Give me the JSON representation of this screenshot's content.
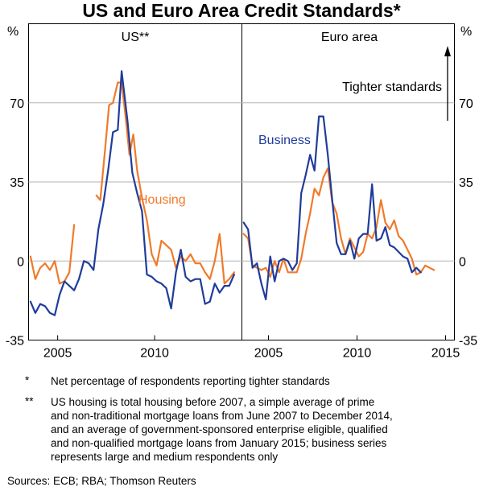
{
  "chart_data": {
    "type": "line",
    "title": "US and Euro Area Credit Standards*",
    "y_unit_label": "%",
    "ylim": [
      -35,
      105
    ],
    "yticks": [
      -35,
      0,
      35,
      70
    ],
    "yticks_labels": [
      "-35",
      "0",
      "35",
      "70"
    ],
    "panels": [
      {
        "name": "US**",
        "xlim": [
          2003.5,
          2014.5
        ],
        "xticks": [
          2005,
          2010
        ],
        "xtick_labels": [
          "2005",
          "2010"
        ],
        "series": [
          {
            "name": "Housing",
            "color": "#f07a2a",
            "segments": [
              [
                [
                  2003.6,
                  2
                ],
                [
                  2003.85,
                  -8
                ],
                [
                  2004.1,
                  -3
                ],
                [
                  2004.35,
                  -1
                ],
                [
                  2004.6,
                  -4
                ],
                [
                  2004.85,
                  0
                ],
                [
                  2005.1,
                  -10
                ],
                [
                  2005.35,
                  -9
                ],
                [
                  2005.6,
                  -5
                ],
                [
                  2005.85,
                  16
                ]
              ],
              [
                [
                  2007.0,
                  29
                ],
                [
                  2007.2,
                  27
                ],
                [
                  2007.45,
                  50
                ],
                [
                  2007.65,
                  69
                ],
                [
                  2007.85,
                  70
                ],
                [
                  2008.1,
                  79
                ],
                [
                  2008.3,
                  79
                ],
                [
                  2008.5,
                  64
                ],
                [
                  2008.7,
                  47
                ],
                [
                  2008.9,
                  56
                ],
                [
                  2009.1,
                  40
                ],
                [
                  2009.35,
                  28
                ],
                [
                  2009.6,
                  18
                ],
                [
                  2009.85,
                  3
                ],
                [
                  2010.1,
                  -2
                ],
                [
                  2010.35,
                  9
                ],
                [
                  2010.6,
                  7
                ],
                [
                  2010.85,
                  5
                ],
                [
                  2011.1,
                  -3
                ],
                [
                  2011.35,
                  2
                ],
                [
                  2011.6,
                  0
                ],
                [
                  2011.85,
                  3
                ],
                [
                  2012.1,
                  -1
                ],
                [
                  2012.35,
                  -1
                ],
                [
                  2012.6,
                  -5
                ],
                [
                  2012.85,
                  -8
                ],
                [
                  2013.1,
                  0
                ],
                [
                  2013.35,
                  12
                ],
                [
                  2013.6,
                  -10
                ],
                [
                  2013.85,
                  -8
                ],
                [
                  2014.1,
                  -5
                ]
              ]
            ]
          },
          {
            "name": "Business",
            "color": "#1f3c9c",
            "segments": [
              [
                [
                  2003.6,
                  -18
                ],
                [
                  2003.85,
                  -23
                ],
                [
                  2004.1,
                  -19
                ],
                [
                  2004.35,
                  -20
                ],
                [
                  2004.6,
                  -23
                ],
                [
                  2004.85,
                  -24
                ],
                [
                  2005.1,
                  -15
                ],
                [
                  2005.35,
                  -9
                ],
                [
                  2005.6,
                  -11
                ],
                [
                  2005.85,
                  -13
                ],
                [
                  2006.1,
                  -8
                ],
                [
                  2006.35,
                  0
                ],
                [
                  2006.6,
                  -1
                ],
                [
                  2006.85,
                  -4
                ],
                [
                  2007.1,
                  14
                ],
                [
                  2007.35,
                  25
                ],
                [
                  2007.6,
                  40
                ],
                [
                  2007.85,
                  57
                ],
                [
                  2008.1,
                  58
                ],
                [
                  2008.3,
                  84
                ],
                [
                  2008.6,
                  62
                ],
                [
                  2008.85,
                  39
                ],
                [
                  2009.1,
                  30
                ],
                [
                  2009.35,
                  22
                ],
                [
                  2009.6,
                  -6
                ],
                [
                  2009.85,
                  -7
                ],
                [
                  2010.1,
                  -9
                ],
                [
                  2010.35,
                  -10
                ],
                [
                  2010.6,
                  -12
                ],
                [
                  2010.85,
                  -21
                ],
                [
                  2011.1,
                  -5
                ],
                [
                  2011.35,
                  5
                ],
                [
                  2011.6,
                  -7
                ],
                [
                  2011.85,
                  -9
                ],
                [
                  2012.1,
                  -8
                ],
                [
                  2012.35,
                  -8
                ],
                [
                  2012.6,
                  -19
                ],
                [
                  2012.85,
                  -18
                ],
                [
                  2013.1,
                  -10
                ],
                [
                  2013.35,
                  -14
                ],
                [
                  2013.6,
                  -11
                ],
                [
                  2013.85,
                  -11
                ],
                [
                  2014.1,
                  -6
                ]
              ]
            ]
          }
        ],
        "annotations": [
          {
            "text": "Housing",
            "color": "#f07a2a"
          }
        ]
      },
      {
        "name": "Euro area",
        "xlim": [
          2003.5,
          2015.5
        ],
        "xticks": [
          2005,
          2010,
          2015
        ],
        "xtick_labels": [
          "2005",
          "2010",
          "2015"
        ],
        "series": [
          {
            "name": "Housing",
            "color": "#f07a2a",
            "segments": [
              [
                [
                  2003.6,
                  12
                ],
                [
                  2003.85,
                  10
                ],
                [
                  2004.1,
                  -2
                ],
                [
                  2004.35,
                  -3
                ],
                [
                  2004.6,
                  -4
                ],
                [
                  2004.85,
                  -3
                ],
                [
                  2005.1,
                  -7
                ],
                [
                  2005.35,
                  0
                ],
                [
                  2005.6,
                  -5
                ],
                [
                  2005.85,
                  1
                ],
                [
                  2006.1,
                  -5
                ],
                [
                  2006.35,
                  -5
                ],
                [
                  2006.6,
                  -5
                ],
                [
                  2006.85,
                  1
                ],
                [
                  2007.1,
                  12
                ],
                [
                  2007.35,
                  21
                ],
                [
                  2007.6,
                  32
                ],
                [
                  2007.85,
                  29
                ],
                [
                  2008.1,
                  37
                ],
                [
                  2008.35,
                  41
                ],
                [
                  2008.6,
                  26
                ],
                [
                  2008.85,
                  21
                ],
                [
                  2009.1,
                  10
                ],
                [
                  2009.35,
                  3
                ],
                [
                  2009.6,
                  10
                ],
                [
                  2009.85,
                  6
                ],
                [
                  2010.1,
                  2
                ],
                [
                  2010.35,
                  4
                ],
                [
                  2010.6,
                  12
                ],
                [
                  2010.85,
                  10
                ],
                [
                  2011.1,
                  15
                ],
                [
                  2011.35,
                  27
                ],
                [
                  2011.6,
                  17
                ],
                [
                  2011.85,
                  14
                ],
                [
                  2012.1,
                  18
                ],
                [
                  2012.35,
                  11
                ],
                [
                  2012.6,
                  9
                ],
                [
                  2012.85,
                  5
                ],
                [
                  2013.1,
                  1
                ],
                [
                  2013.35,
                  -6
                ],
                [
                  2013.6,
                  -5
                ],
                [
                  2013.85,
                  -2
                ],
                [
                  2014.1,
                  -3
                ],
                [
                  2014.35,
                  -4
                ]
              ]
            ]
          },
          {
            "name": "Business",
            "color": "#1f3c9c",
            "segments": [
              [
                [
                  2003.6,
                  17
                ],
                [
                  2003.85,
                  14
                ],
                [
                  2004.1,
                  -3
                ],
                [
                  2004.35,
                  -1
                ],
                [
                  2004.6,
                  -10
                ],
                [
                  2004.85,
                  -17
                ],
                [
                  2005.1,
                  2
                ],
                [
                  2005.35,
                  -9
                ],
                [
                  2005.6,
                  0
                ],
                [
                  2005.85,
                  1
                ],
                [
                  2006.1,
                  0
                ],
                [
                  2006.35,
                  -4
                ],
                [
                  2006.6,
                  -1
                ],
                [
                  2006.85,
                  30
                ],
                [
                  2007.1,
                  38
                ],
                [
                  2007.35,
                  47
                ],
                [
                  2007.6,
                  40
                ],
                [
                  2007.85,
                  64
                ],
                [
                  2008.1,
                  64
                ],
                [
                  2008.35,
                  47
                ],
                [
                  2008.6,
                  27
                ],
                [
                  2008.85,
                  8
                ],
                [
                  2009.1,
                  3
                ],
                [
                  2009.35,
                  3
                ],
                [
                  2009.6,
                  9
                ],
                [
                  2009.85,
                  1
                ],
                [
                  2010.1,
                  10
                ],
                [
                  2010.35,
                  12
                ],
                [
                  2010.6,
                  12
                ],
                [
                  2010.85,
                  34
                ],
                [
                  2011.1,
                  9
                ],
                [
                  2011.35,
                  10
                ],
                [
                  2011.6,
                  15
                ],
                [
                  2011.85,
                  7
                ],
                [
                  2012.1,
                  6
                ],
                [
                  2012.35,
                  4
                ],
                [
                  2012.6,
                  2
                ],
                [
                  2012.85,
                  1
                ],
                [
                  2013.1,
                  -5
                ],
                [
                  2013.35,
                  -3
                ],
                [
                  2013.6,
                  -5
                ]
              ]
            ]
          }
        ],
        "annotations": [
          {
            "text": "Business",
            "color": "#1f3c9c"
          },
          {
            "text": "Tighter standards",
            "color": "#000000"
          }
        ]
      }
    ]
  },
  "notes": [
    {
      "mark": "*",
      "lines": [
        "Net percentage of respondents reporting tighter standards"
      ]
    },
    {
      "mark": "**",
      "lines": [
        "US housing is total housing before 2007, a simple average of prime",
        "and non-traditional mortgage loans from June 2007 to December 2014,",
        "and an average of government-sponsored enterprise eligible, qualified",
        "and non-qualified mortgage loans from January 2015; business series",
        "represents large and medium respondents only"
      ]
    }
  ],
  "sources": "Sources:   ECB; RBA; Thomson Reuters"
}
